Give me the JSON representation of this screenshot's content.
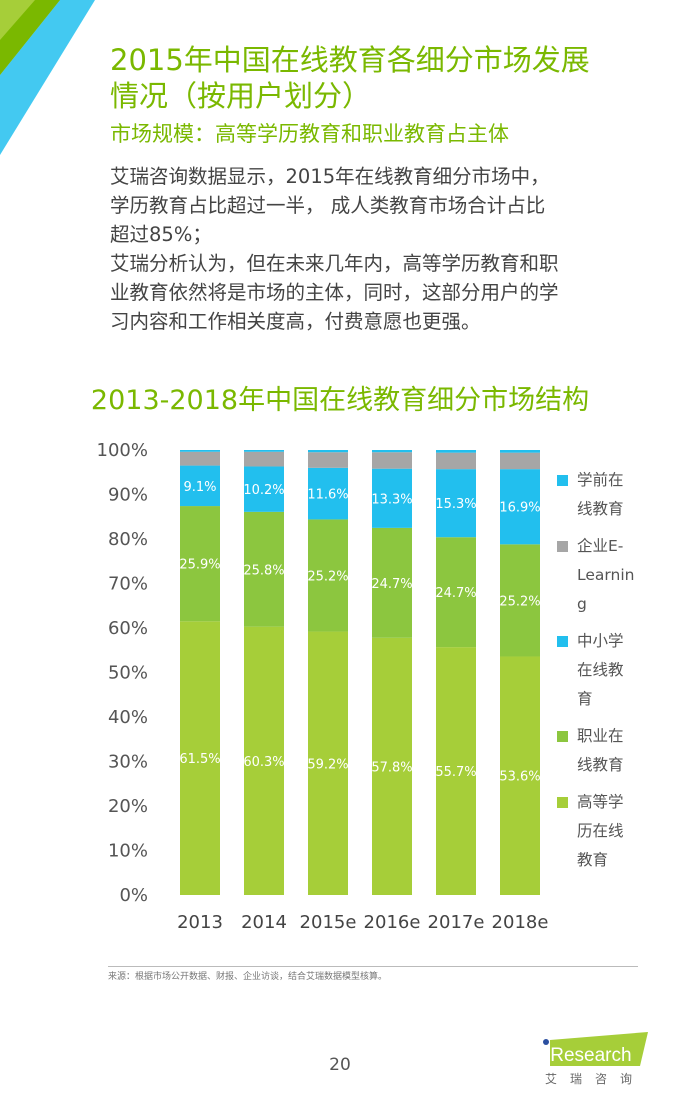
{
  "header": {
    "title_line1": "2015年中国在线教育各细分市场发展",
    "title_line2": "情况（按用户划分）",
    "subtitle": "市场规模：高等学历教育和职业教育占主体"
  },
  "body": {
    "lines": [
      "艾瑞咨询数据显示，2015年在线教育细分市场中，",
      "学历教育占比超过一半， 成人类教育市场合计占比",
      "超过85%；",
      "艾瑞分析认为，但在未来几年内，高等学历教育和职",
      "业教育依然将是市场的主体，同时，这部分用户的学",
      "习内容和工作相关度高，付费意愿也更强。"
    ]
  },
  "chart_data": {
    "type": "bar",
    "stacked": true,
    "title": "2013-2018年中国在线教育细分市场结构",
    "categories": [
      "2013",
      "2014",
      "2015e",
      "2016e",
      "2017e",
      "2018e"
    ],
    "yticks": [
      "0%",
      "10%",
      "20%",
      "30%",
      "40%",
      "50%",
      "60%",
      "70%",
      "80%",
      "90%",
      "100%"
    ],
    "ylim": [
      0,
      100
    ],
    "series": [
      {
        "name": "高等学历在线教育",
        "color": "#a6ce39",
        "values": [
          61.5,
          60.3,
          59.2,
          57.8,
          55.7,
          53.6
        ],
        "labels": [
          "61.5%",
          "60.3%",
          "59.2%",
          "57.8%",
          "55.7%",
          "53.6%"
        ]
      },
      {
        "name": "职业在线教育",
        "color": "#8cc63f",
        "values": [
          25.9,
          25.8,
          25.2,
          24.7,
          24.7,
          25.2
        ],
        "labels": [
          "25.9%",
          "25.8%",
          "25.2%",
          "24.7%",
          "24.7%",
          "25.2%"
        ]
      },
      {
        "name": "中小学在线教育",
        "color": "#22bfee",
        "values": [
          9.1,
          10.2,
          11.6,
          13.3,
          15.3,
          16.9
        ],
        "labels": [
          "9.1%",
          "10.2%",
          "11.6%",
          "13.3%",
          "15.3%",
          "16.9%"
        ]
      },
      {
        "name": "企业E-Learning",
        "color": "#a6a6a6",
        "values": [
          3.1,
          3.3,
          3.5,
          3.7,
          3.7,
          3.7
        ]
      },
      {
        "name": "学前在线教育",
        "color": "#22bfee",
        "values": [
          0.4,
          0.4,
          0.5,
          0.5,
          0.6,
          0.6
        ]
      }
    ],
    "legend": {
      "placement": "right",
      "items": [
        [
          "学前在",
          "线教育"
        ],
        [
          "企业E-",
          "Learnin",
          "g"
        ],
        [
          "中小学",
          "在线教",
          "育"
        ],
        [
          "职业在",
          "线教育"
        ],
        [
          "高等学",
          "历在线",
          "教育"
        ]
      ],
      "colors": [
        "#22bfee",
        "#a6a6a6",
        "#22bfee",
        "#8cc63f",
        "#a6ce39"
      ]
    }
  },
  "footer": {
    "source": "来源：根据市场公开数据、财报、企业访谈，结合艾瑞数据模型核算。",
    "page": "20",
    "logo": "iResearch",
    "logo_cn": "艾瑞咨询"
  }
}
